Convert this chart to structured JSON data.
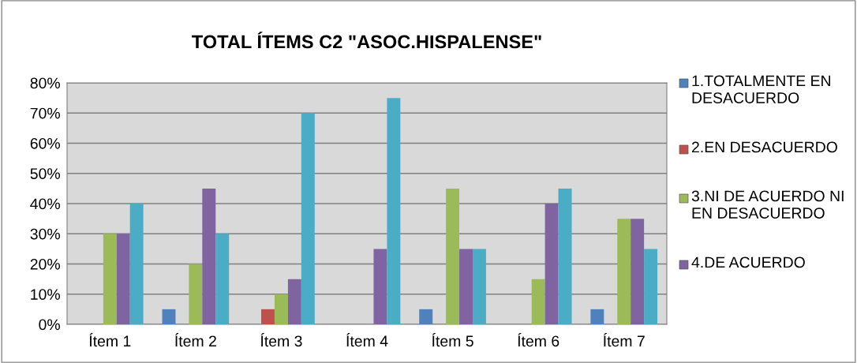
{
  "chart_data": {
    "type": "bar",
    "title": "TOTAL ÍTEMS C2 \"ASOC.HISPALENSE\"",
    "categories": [
      "Ítem 1",
      "Ítem 2",
      "Ítem 3",
      "Ítem 4",
      "Ítem 5",
      "Ítem 6",
      "Ítem 7"
    ],
    "series": [
      {
        "name": "1.TOTALMENTE EN DESACUERDO",
        "color": "#4f81bd",
        "values": [
          0,
          5,
          0,
          0,
          5,
          0,
          5
        ]
      },
      {
        "name": "2.EN DESACUERDO",
        "color": "#c0504d",
        "values": [
          0,
          0,
          5,
          0,
          0,
          0,
          0
        ]
      },
      {
        "name": "3.NI DE ACUERDO NI EN DESACUERDO",
        "color": "#9bbb59",
        "values": [
          30,
          20,
          10,
          0,
          45,
          15,
          35
        ]
      },
      {
        "name": "4.DE ACUERDO",
        "color": "#8064a2",
        "values": [
          30,
          45,
          15,
          25,
          25,
          40,
          35
        ]
      },
      {
        "color": "#4bacc6",
        "values": [
          40,
          30,
          70,
          75,
          25,
          45,
          25
        ]
      }
    ],
    "ylim": [
      0,
      80
    ],
    "yticks": [
      {
        "value": 0,
        "label": "0%"
      },
      {
        "value": 10,
        "label": "10%"
      },
      {
        "value": 20,
        "label": "20%"
      },
      {
        "value": 30,
        "label": "30%"
      },
      {
        "value": 40,
        "label": "40%"
      },
      {
        "value": 50,
        "label": "50%"
      },
      {
        "value": 60,
        "label": "60%"
      },
      {
        "value": 70,
        "label": "70%"
      },
      {
        "value": 80,
        "label": "80%"
      }
    ],
    "grid": "y",
    "legend": "right"
  }
}
